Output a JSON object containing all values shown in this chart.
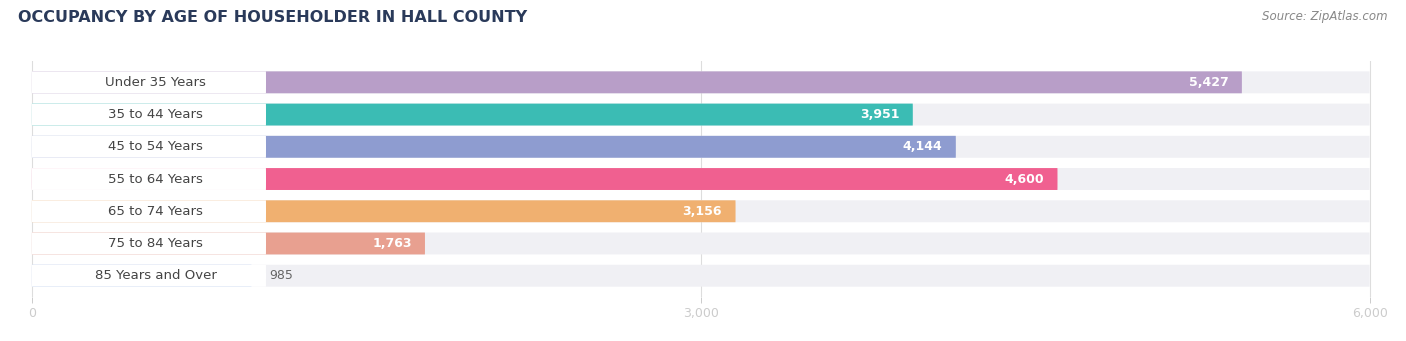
{
  "title": "OCCUPANCY BY AGE OF HOUSEHOLDER IN HALL COUNTY",
  "source": "Source: ZipAtlas.com",
  "categories": [
    "Under 35 Years",
    "35 to 44 Years",
    "45 to 54 Years",
    "55 to 64 Years",
    "65 to 74 Years",
    "75 to 84 Years",
    "85 Years and Over"
  ],
  "values": [
    5427,
    3951,
    4144,
    4600,
    3156,
    1763,
    985
  ],
  "bar_colors": [
    "#b89ec8",
    "#3bbcb4",
    "#8e9cd0",
    "#f06090",
    "#f0b070",
    "#e8a090",
    "#a0b8e8"
  ],
  "xlim_max": 6000,
  "xticks": [
    0,
    3000,
    6000
  ],
  "background_color": "#ffffff",
  "bar_bg_color": "#f0f0f4",
  "label_fontsize": 9.5,
  "value_fontsize": 9.0,
  "title_fontsize": 11.5,
  "title_color": "#2a3a5a",
  "source_color": "#888888",
  "label_text_color": "#444444",
  "value_color_inside": "#ffffff",
  "value_color_outside": "#666666",
  "bar_height": 0.68,
  "bar_gap": 0.32
}
